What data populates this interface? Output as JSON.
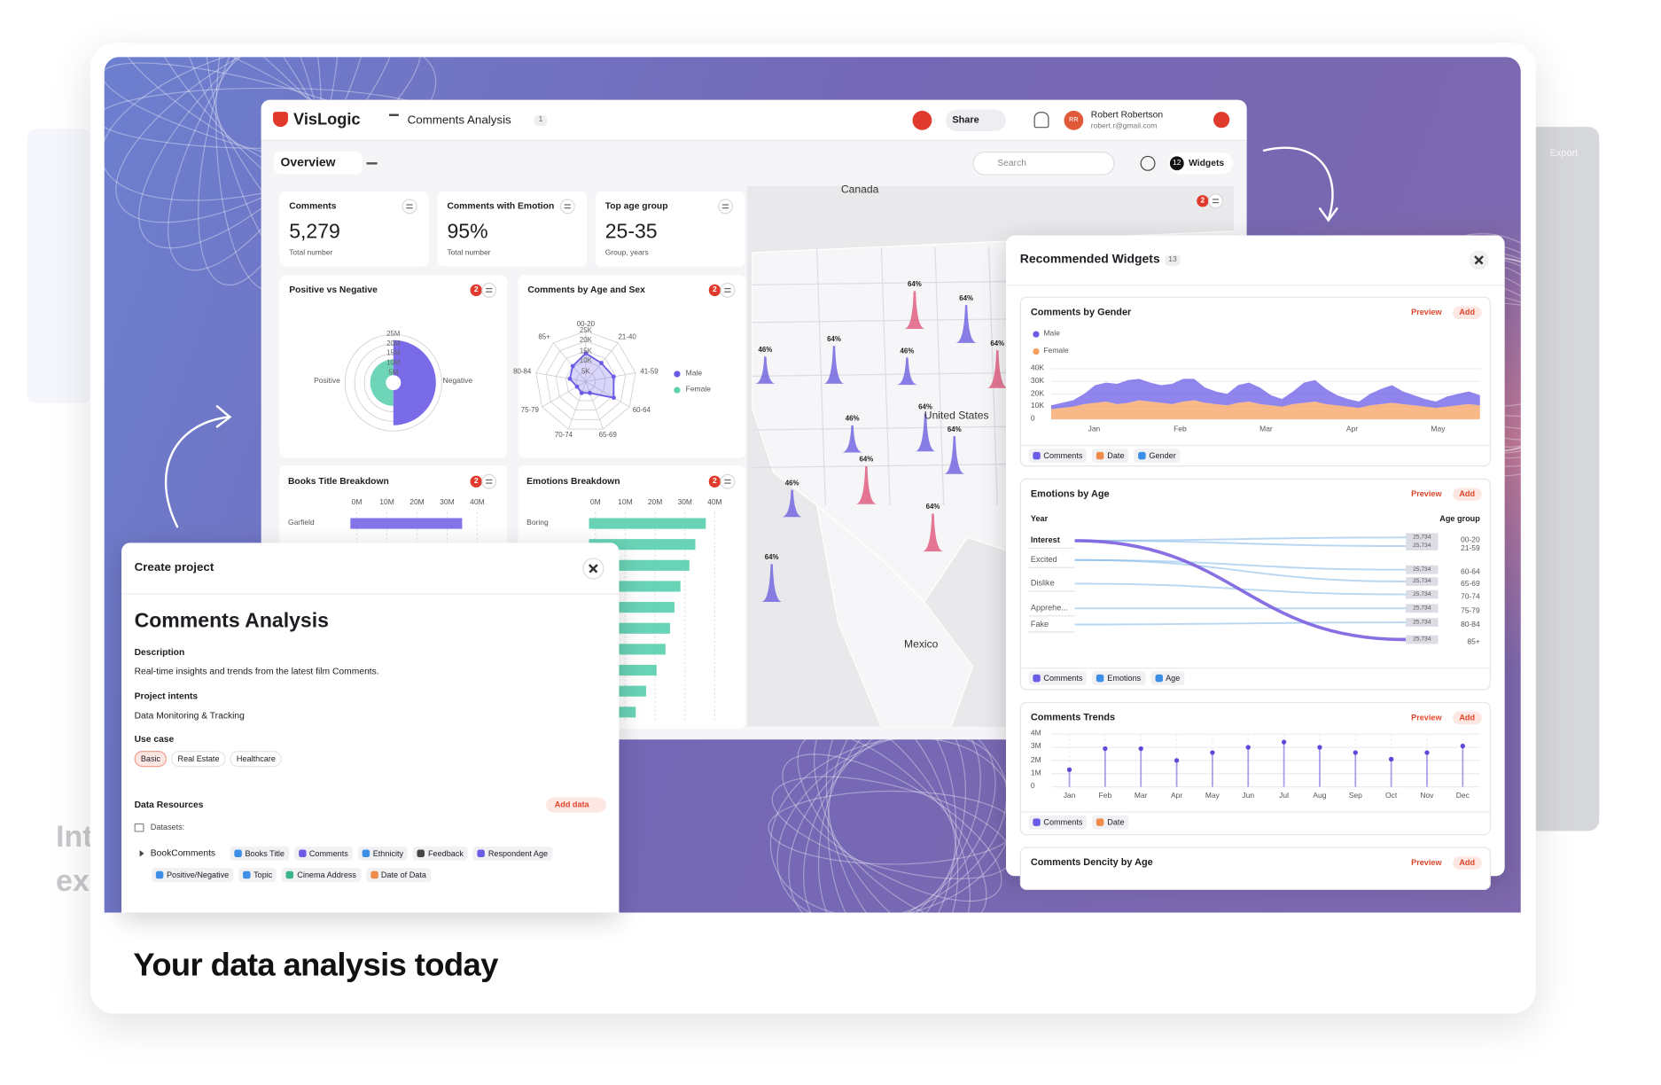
{
  "ghost": {
    "left": [
      "Int",
      "ex"
    ],
    "right": "Export"
  },
  "app": {
    "brand": "VisLogic",
    "breadcrumb": "Comments Analysis",
    "badge": 1,
    "share": "Share",
    "user": {
      "initials": "RR",
      "name": "Robert Robertson",
      "email": "robert.r@gmail.com"
    },
    "tab": "Overview",
    "search": "Search",
    "widgets_count": 12,
    "widgets": "Widgets"
  },
  "kpis": [
    {
      "title": "Comments",
      "value": "5,279",
      "sub": "Total number"
    },
    {
      "title": "Comments with Emotion",
      "value": "95%",
      "sub": "Total number"
    },
    {
      "title": "Top age group",
      "value": "25-35",
      "sub": "Group, years"
    }
  ],
  "pos_neg": {
    "title": "Positive vs Negative",
    "badge": 2,
    "type": "pie",
    "rings": [
      {
        "value": 25000000,
        "label": "25M"
      },
      {
        "value": 20000000,
        "label": "20M"
      },
      {
        "value": 15000000,
        "label": "15M"
      },
      {
        "value": 10000000,
        "label": "10M"
      },
      {
        "value": 5000000,
        "label": "5M"
      }
    ],
    "categories": [
      "Positive",
      "Negative"
    ],
    "values": [
      12000000,
      22000000
    ],
    "colors": [
      "#5fd0b0",
      "#6b5ce7"
    ]
  },
  "radar": {
    "title": "Comments by Age and Sex",
    "badge": 2,
    "type": "radar",
    "axes": [
      "00-20",
      "21-40",
      "41-59",
      "60-64",
      "65-69",
      "70-74",
      "75-79",
      "80-84",
      "85+"
    ],
    "rings": [
      {
        "value": 25000,
        "label": "25K"
      },
      {
        "value": 20000,
        "label": "20K"
      },
      {
        "value": 15000,
        "label": "15K"
      },
      {
        "value": 10000,
        "label": "10K"
      },
      {
        "value": 5000,
        "label": "5K"
      }
    ],
    "series": [
      {
        "name": "Male",
        "color": "#6b5ce7",
        "values": [
          14000,
          12000,
          14000,
          16000,
          6000,
          6000,
          5000,
          8000,
          10000
        ]
      },
      {
        "name": "Female",
        "color": "#5fd0b0",
        "values": [
          null,
          null,
          null,
          null,
          null,
          null,
          null,
          null,
          null
        ]
      }
    ]
  },
  "books": {
    "title": "Books Title Breakdown",
    "badge": 2,
    "type": "bar",
    "xticks": [
      {
        "value": 0,
        "label": "0M"
      },
      {
        "value": 10000000,
        "label": "10M"
      },
      {
        "value": 20000000,
        "label": "20M"
      },
      {
        "value": 30000000,
        "label": "30M"
      },
      {
        "value": 40000000,
        "label": "40M"
      }
    ],
    "categories": [
      "Garfield"
    ],
    "values": [
      35000000
    ],
    "color": "#6f5ee6"
  },
  "emotions": {
    "title": "Emotions Breakdown",
    "badge": 2,
    "type": "bar",
    "xticks": [
      {
        "value": 0,
        "label": "0M"
      },
      {
        "value": 10000000,
        "label": "10M"
      },
      {
        "value": 20000000,
        "label": "20M"
      },
      {
        "value": 30000000,
        "label": "30M"
      },
      {
        "value": 40000000,
        "label": "40M"
      }
    ],
    "categories": [
      "Boring",
      null,
      null,
      null,
      null,
      null,
      null,
      null,
      null,
      null
    ],
    "values": [
      37000000,
      33500000,
      31500000,
      28500000,
      26500000,
      25000000,
      23500000,
      20500000,
      17000000,
      13500000
    ],
    "color": "#4fcba8"
  },
  "map": {
    "labels": [
      "Canada",
      "United States",
      "Mexico"
    ],
    "badge": 2,
    "peaks": {
      "values": [
        46,
        64,
        46,
        64,
        64,
        64,
        46,
        64,
        64,
        46,
        64,
        64,
        64
      ],
      "value_labels": [
        "46%",
        "64%",
        "46%",
        "64%",
        "64%",
        "64%",
        "46%",
        "64%",
        "64%",
        "46%",
        "64%",
        "64%",
        "64%"
      ],
      "colors": [
        "#6d5fe0",
        "#6d5fe0",
        "#6d5fe0",
        "#e0567a",
        "#6d5fe0",
        "#e0567a",
        "#6d5fe0",
        "#6d5fe0",
        "#6d5fe0",
        "#6d5fe0",
        "#e0567a",
        "#e0567a",
        "#6d5fe0"
      ]
    }
  },
  "recommended": {
    "title": "Recommended Widgets",
    "count": 13,
    "preview": "Preview",
    "add": "Add",
    "gender": {
      "title": "Comments by Gender",
      "type": "area",
      "yticks": [
        {
          "value": 40000,
          "label": "40K"
        },
        {
          "value": 30000,
          "label": "30K"
        },
        {
          "value": 20000,
          "label": "20K"
        },
        {
          "value": 10000,
          "label": "10K"
        },
        0
      ],
      "ylim": [
        0,
        40000
      ],
      "months": [
        "Jan",
        "Feb",
        "Mar",
        "Apr",
        "May"
      ],
      "series": [
        {
          "name": "Male",
          "color": "#6b5ce7",
          "values": [
            3000,
            4000,
            5000,
            8000,
            14000,
            15000,
            16000,
            18000,
            17000,
            15000,
            14000,
            16000,
            18000,
            17000,
            12000,
            10000,
            9000,
            14000,
            15000,
            13000,
            8000,
            6000,
            10000,
            16000,
            17000,
            12000,
            8000,
            6000,
            5000,
            9000,
            12000,
            14000,
            10000,
            8000,
            6000,
            5000,
            8000,
            9000,
            10000,
            8000
          ]
        },
        {
          "name": "Female",
          "color": "#f5a05f",
          "values": [
            8000,
            9000,
            10000,
            12000,
            13000,
            14000,
            12000,
            13000,
            15000,
            14000,
            13000,
            12000,
            14000,
            15000,
            13000,
            12000,
            11000,
            13000,
            14000,
            12000,
            11000,
            10000,
            12000,
            13000,
            14000,
            12000,
            11000,
            10000,
            9000,
            11000,
            12000,
            13000,
            12000,
            11000,
            10000,
            9000,
            10000,
            11000,
            12000,
            11000
          ]
        }
      ],
      "tags": [
        "Comments",
        "Date",
        "Gender"
      ]
    },
    "emotions_age": {
      "title": "Emotions by Age",
      "type": "sankey",
      "left_title": "Year",
      "right_title": "Age group",
      "sources": [
        "Interest",
        "Excited",
        "Dislike",
        "Apprehe...",
        "Fake"
      ],
      "targets": [
        "00-20",
        "21-59",
        "60-64",
        "65-69",
        "70-74",
        "75-79",
        "80-84",
        "85+"
      ],
      "values": [
        25734,
        25734,
        25734,
        25734,
        25734,
        25734,
        25734,
        25734
      ],
      "value_labels": [
        "25,734",
        "25,734",
        "25,734",
        "25,734",
        "25,734",
        "25,734",
        "25,734",
        "25,734"
      ],
      "tags": [
        "Comments",
        "Emotions",
        "Age"
      ]
    },
    "trends": {
      "title": "Comments Trends",
      "type": "lollipop",
      "yticks": [
        {
          "value": 4000000,
          "label": "4M"
        },
        {
          "value": 3000000,
          "label": "3M"
        },
        {
          "value": 2000000,
          "label": "2M"
        },
        {
          "value": 1000000,
          "label": "1M"
        },
        0
      ],
      "ylim": [
        0,
        4000000
      ],
      "color": "#5b4ad8",
      "categories": [
        "Jan",
        "Feb",
        "Mar",
        "Apr",
        "May",
        "Jun",
        "Jul",
        "Aug",
        "Sep",
        "Oct",
        "Nov",
        "Dec"
      ],
      "values": [
        1300000,
        2900000,
        2900000,
        2000000,
        2600000,
        3000000,
        3400000,
        3000000,
        2600000,
        2100000,
        2600000,
        3100000
      ],
      "tags": [
        "Comments",
        "Date"
      ]
    },
    "density": {
      "title": "Comments Dencity by Age"
    }
  },
  "create": {
    "title": "Create project",
    "name": "Comments Analysis",
    "description_label": "Description",
    "description": "Real-time insights and trends from the latest film Comments.",
    "intents_label": "Project intents",
    "intents": "Data Monitoring & Tracking",
    "usecase_label": "Use case",
    "usecases": [
      "Basic",
      "Real Estate",
      "Healthcare"
    ],
    "resources": "Data Resources",
    "add_data": "Add data",
    "datasets": "Datasets:",
    "root": "BookComments",
    "fields": [
      "Books Title",
      "Comments",
      "Ethnicity",
      "Feedback",
      "Respondent Age",
      "Positive/Negative",
      "Topic",
      "Cinema Address",
      "Date of Data"
    ]
  },
  "tagline": "Your data analysis today"
}
